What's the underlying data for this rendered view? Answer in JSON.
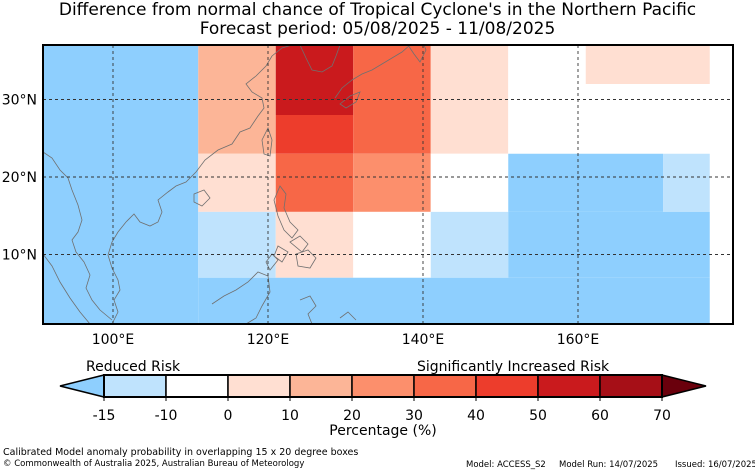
{
  "title": "Difference from normal chance of Tropical Cyclone's in the Northern Pacific",
  "subtitle": "Forecast period: 05/08/2025 - 11/08/2025",
  "colors": {
    "neg15": "#8ecffe",
    "neg10": "#bfe3fd",
    "zero": "#ffffff",
    "p0_10": "#ffdfd2",
    "p10_20": "#fcb597",
    "p20_30": "#fc8f6c",
    "p30_40": "#f76747",
    "p40_50": "#ed3d2c",
    "p50_60": "#ca1a1d",
    "p60_70": "#a60f17",
    "p70": "#6a000c"
  },
  "map": {
    "lon_labels": [
      "100°E",
      "120°E",
      "140°E",
      "160°E"
    ],
    "lat_labels": [
      "10°N",
      "20°N",
      "30°N"
    ],
    "cells": [
      {
        "lon": [
          91,
          111
        ],
        "lat": [
          1,
          37
        ],
        "cat": "neg15"
      },
      {
        "lon": [
          111,
          121
        ],
        "lat": [
          28,
          37
        ],
        "cat": "p10_20"
      },
      {
        "lon": [
          121,
          131
        ],
        "lat": [
          28,
          37
        ],
        "cat": "p50_60"
      },
      {
        "lon": [
          131,
          141
        ],
        "lat": [
          28,
          37
        ],
        "cat": "p30_40"
      },
      {
        "lon": [
          141,
          151
        ],
        "lat": [
          28,
          37
        ],
        "cat": "p0_10"
      },
      {
        "lon": [
          151,
          161
        ],
        "lat": [
          28,
          37
        ],
        "cat": "zero"
      },
      {
        "lon": [
          161,
          177
        ],
        "lat": [
          32,
          37
        ],
        "cat": "p0_10"
      },
      {
        "lon": [
          161,
          177
        ],
        "lat": [
          28,
          32
        ],
        "cat": "zero"
      },
      {
        "lon": [
          111,
          121
        ],
        "lat": [
          23,
          28
        ],
        "cat": "p10_20"
      },
      {
        "lon": [
          121,
          131
        ],
        "lat": [
          23,
          28
        ],
        "cat": "p40_50"
      },
      {
        "lon": [
          131,
          141
        ],
        "lat": [
          23,
          28
        ],
        "cat": "p30_40"
      },
      {
        "lon": [
          141,
          151
        ],
        "lat": [
          23,
          28
        ],
        "cat": "p0_10"
      },
      {
        "lon": [
          151,
          177
        ],
        "lat": [
          23,
          28
        ],
        "cat": "zero"
      },
      {
        "lon": [
          111,
          121
        ],
        "lat": [
          15.5,
          23
        ],
        "cat": "p0_10"
      },
      {
        "lon": [
          121,
          131
        ],
        "lat": [
          15.5,
          23
        ],
        "cat": "p30_40"
      },
      {
        "lon": [
          131,
          141
        ],
        "lat": [
          15.5,
          23
        ],
        "cat": "p20_30"
      },
      {
        "lon": [
          141,
          151
        ],
        "lat": [
          15.5,
          23
        ],
        "cat": "zero"
      },
      {
        "lon": [
          151,
          171
        ],
        "lat": [
          15.5,
          23
        ],
        "cat": "neg15"
      },
      {
        "lon": [
          171,
          177
        ],
        "lat": [
          15.5,
          23
        ],
        "cat": "neg10"
      },
      {
        "lon": [
          111,
          121
        ],
        "lat": [
          7,
          15.5
        ],
        "cat": "neg10"
      },
      {
        "lon": [
          121,
          131
        ],
        "lat": [
          7,
          15.5
        ],
        "cat": "p0_10"
      },
      {
        "lon": [
          131,
          141
        ],
        "lat": [
          7,
          15.5
        ],
        "cat": "zero"
      },
      {
        "lon": [
          141,
          151
        ],
        "lat": [
          7,
          15.5
        ],
        "cat": "neg10"
      },
      {
        "lon": [
          151,
          177
        ],
        "lat": [
          7,
          15.5
        ],
        "cat": "neg15"
      },
      {
        "lon": [
          111,
          177
        ],
        "lat": [
          1,
          7
        ],
        "cat": "neg15"
      }
    ]
  },
  "legend": {
    "left_label": "Reduced Risk",
    "right_label": "Significantly Increased Risk",
    "order": [
      "neg15",
      "neg10",
      "zero",
      "p0_10",
      "p10_20",
      "p20_30",
      "p30_40",
      "p40_50",
      "p50_60",
      "p60_70",
      "p70"
    ],
    "ticks": [
      "-15",
      "-10",
      "0",
      "10",
      "20",
      "30",
      "40",
      "50",
      "60",
      "70"
    ],
    "xlabel": "Percentage (%)"
  },
  "footer": {
    "line1": "Calibrated Model anomaly probability in overlapping 15 x 20 degree boxes",
    "line2": "© Commonwealth of Australia 2025, Australian Bureau of Meteorology",
    "model": "Model: ACCESS_S2",
    "model_run": "Model Run: 14/07/2025",
    "issued": "Issued: 16/07/2025"
  }
}
